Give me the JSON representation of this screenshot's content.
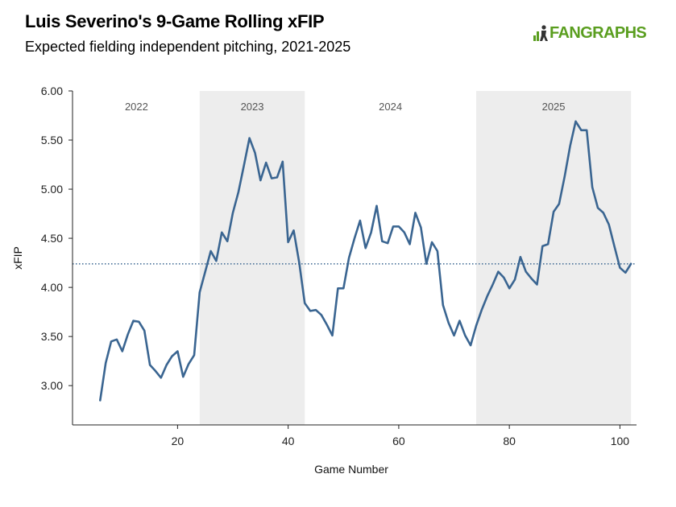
{
  "header": {
    "title": "Luis Severino's 9-Game Rolling xFIP",
    "subtitle": "Expected fielding independent pitching, 2021-2025",
    "logo_text": "FANGRAPHS",
    "logo_icon": "fangraphs-logo-icon"
  },
  "colors": {
    "line": "#3a6591",
    "band": "#ededed",
    "reference_line": "#3a6591",
    "axis": "#222222",
    "logo": "#5a9e1f"
  },
  "chart_data": {
    "type": "line",
    "title": "Luis Severino's 9-Game Rolling xFIP",
    "subtitle": "Expected fielding independent pitching, 2021-2025",
    "xlabel": "Game Number",
    "ylabel": "xFIP",
    "xlim": [
      1,
      103
    ],
    "ylim": [
      2.6,
      6.0
    ],
    "xticks": [
      20,
      40,
      60,
      80,
      100
    ],
    "yticks": [
      3.0,
      3.5,
      4.0,
      4.5,
      5.0,
      5.5,
      6.0
    ],
    "ytick_format": "0.00",
    "grid": false,
    "reference_line": {
      "axis": "y",
      "value": 4.24,
      "style": "dotted"
    },
    "bands": [
      {
        "label": "2022",
        "x_start": 1,
        "x_end": 24,
        "shaded": false
      },
      {
        "label": "2023",
        "x_start": 24,
        "x_end": 43,
        "shaded": true
      },
      {
        "label": "2024",
        "x_start": 43,
        "x_end": 74,
        "shaded": false
      },
      {
        "label": "2025",
        "x_start": 74,
        "x_end": 102,
        "shaded": true
      }
    ],
    "series": [
      {
        "x": [
          6,
          7,
          8,
          9,
          10,
          11,
          12,
          13,
          14,
          15,
          16,
          17,
          18,
          19,
          20,
          21,
          22,
          23,
          24,
          25,
          26,
          27,
          28,
          29,
          30,
          31,
          32,
          33,
          34,
          35,
          36,
          37,
          38,
          39,
          40,
          41,
          42,
          43,
          44,
          45,
          46,
          47,
          48,
          49,
          50,
          51,
          52,
          53,
          54,
          55,
          56,
          57,
          58,
          59,
          60,
          61,
          62,
          63,
          64,
          65,
          66,
          67,
          68,
          69,
          70,
          71,
          72,
          73,
          74,
          75,
          76,
          77,
          78,
          79,
          80,
          81,
          82,
          83,
          84,
          85,
          86,
          87,
          88,
          89,
          90,
          91,
          92,
          93,
          94,
          95,
          96,
          97,
          98,
          99,
          100,
          101,
          102
        ],
        "values": [
          2.85,
          3.23,
          3.45,
          3.47,
          3.35,
          3.52,
          3.66,
          3.65,
          3.56,
          3.21,
          3.15,
          3.08,
          3.21,
          3.3,
          3.35,
          3.09,
          3.22,
          3.31,
          3.95,
          4.16,
          4.37,
          4.27,
          4.56,
          4.47,
          4.76,
          4.97,
          5.24,
          5.52,
          5.37,
          5.09,
          5.27,
          5.11,
          5.12,
          5.28,
          4.46,
          4.58,
          4.25,
          3.84,
          3.76,
          3.77,
          3.72,
          3.62,
          3.51,
          3.99,
          3.99,
          4.3,
          4.5,
          4.68,
          4.4,
          4.56,
          4.83,
          4.47,
          4.45,
          4.62,
          4.62,
          4.56,
          4.44,
          4.76,
          4.61,
          4.24,
          4.46,
          4.37,
          3.82,
          3.64,
          3.51,
          3.66,
          3.51,
          3.41,
          3.61,
          3.77,
          3.91,
          4.03,
          4.16,
          4.1,
          3.99,
          4.08,
          4.31,
          4.16,
          4.09,
          4.03,
          4.42,
          4.44,
          4.77,
          4.85,
          5.13,
          5.44,
          5.69,
          5.6,
          5.6,
          5.02,
          4.81,
          4.76,
          4.64,
          4.42,
          4.2,
          4.15,
          4.24
        ]
      }
    ]
  }
}
